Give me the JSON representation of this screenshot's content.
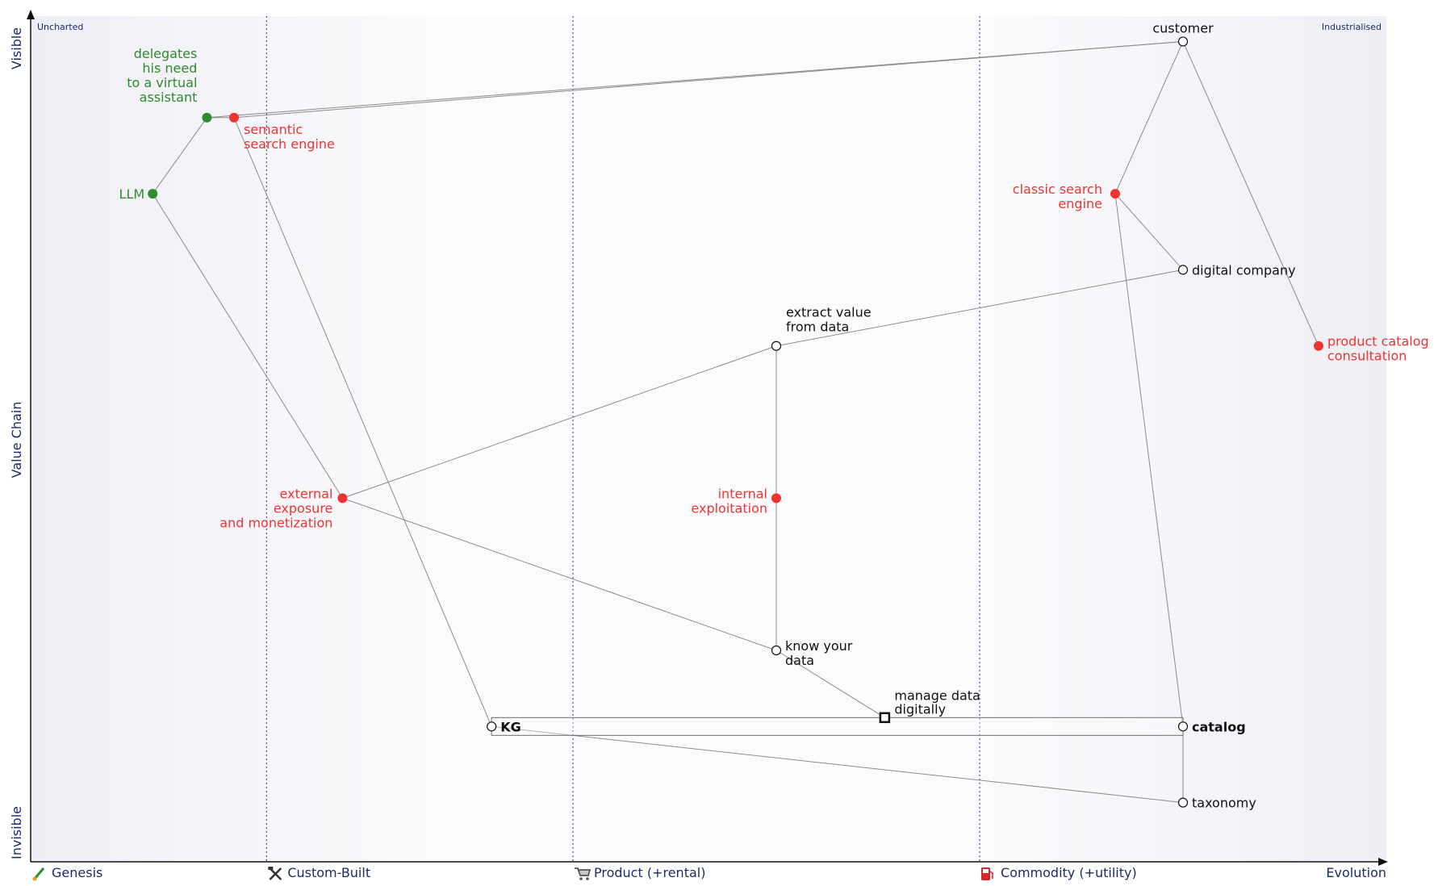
{
  "axes": {
    "y_top": "Visible",
    "y_middle": "Value Chain",
    "y_bottom": "Invisible",
    "x_end": "Evolution",
    "corner_left": "Uncharted",
    "corner_right": "Industrialised"
  },
  "stages": [
    {
      "id": "genesis",
      "label": "Genesis",
      "icon": "brush-icon",
      "x": 0
    },
    {
      "id": "custom",
      "label": "Custom-Built",
      "icon": "tools-icon",
      "x": 0.174
    },
    {
      "id": "product",
      "label": "Product (+rental)",
      "icon": "cart-icon",
      "x": 0.4
    },
    {
      "id": "commodity",
      "label": "Commodity (+utility)",
      "icon": "fuel-icon",
      "x": 0.7
    }
  ],
  "components": [
    {
      "id": "customer",
      "label": [
        "customer"
      ],
      "type": "open",
      "color": "black",
      "evolution": 0.85,
      "visibility": 0.97
    },
    {
      "id": "delegates",
      "label": [
        "delegates",
        "his need",
        "to a virtual",
        "assistant"
      ],
      "type": "filled",
      "color": "green",
      "evolution": 0.13,
      "visibility": 0.88
    },
    {
      "id": "semantic",
      "label": [
        "semantic",
        "search engine"
      ],
      "type": "filled",
      "color": "red",
      "evolution": 0.15,
      "visibility": 0.88
    },
    {
      "id": "llm",
      "label": [
        "LLM"
      ],
      "type": "filled",
      "color": "green",
      "evolution": 0.09,
      "visibility": 0.79
    },
    {
      "id": "classic",
      "label": [
        "classic search",
        "engine"
      ],
      "type": "filled",
      "color": "red",
      "evolution": 0.8,
      "visibility": 0.79
    },
    {
      "id": "digital",
      "label": [
        "digital company"
      ],
      "type": "open",
      "color": "black",
      "evolution": 0.85,
      "visibility": 0.7
    },
    {
      "id": "extract",
      "label": [
        "extract value",
        "from data"
      ],
      "type": "open",
      "color": "black",
      "evolution": 0.55,
      "visibility": 0.61
    },
    {
      "id": "catalog_consult",
      "label": [
        "product catalog",
        "consultation"
      ],
      "type": "filled",
      "color": "red",
      "evolution": 0.95,
      "visibility": 0.61
    },
    {
      "id": "external",
      "label": [
        "external",
        "exposure",
        "and monetization"
      ],
      "type": "filled",
      "color": "red",
      "evolution": 0.23,
      "visibility": 0.43
    },
    {
      "id": "internal",
      "label": [
        "internal",
        "exploitation"
      ],
      "type": "filled",
      "color": "red",
      "evolution": 0.55,
      "visibility": 0.43
    },
    {
      "id": "know",
      "label": [
        "know your",
        "data"
      ],
      "type": "open",
      "color": "black",
      "evolution": 0.55,
      "visibility": 0.25
    },
    {
      "id": "kg",
      "label": [
        "KG"
      ],
      "type": "open",
      "color": "black",
      "evolution": 0.34,
      "visibility": 0.16,
      "bold": true
    },
    {
      "id": "catalog",
      "label": [
        "catalog"
      ],
      "type": "open",
      "color": "black",
      "evolution": 0.85,
      "visibility": 0.16,
      "bold": true
    },
    {
      "id": "taxonomy",
      "label": [
        "taxonomy"
      ],
      "type": "open",
      "color": "black",
      "evolution": 0.85,
      "visibility": 0.07
    }
  ],
  "links": [
    [
      "customer",
      "delegates"
    ],
    [
      "customer",
      "semantic"
    ],
    [
      "customer",
      "classic"
    ],
    [
      "customer",
      "catalog_consult"
    ],
    [
      "delegates",
      "llm"
    ],
    [
      "delegates",
      "semantic"
    ],
    [
      "llm",
      "external"
    ],
    [
      "semantic",
      "kg"
    ],
    [
      "classic",
      "digital"
    ],
    [
      "classic",
      "catalog"
    ],
    [
      "digital",
      "extract"
    ],
    [
      "extract",
      "external"
    ],
    [
      "extract",
      "internal"
    ],
    [
      "internal",
      "know"
    ],
    [
      "external",
      "know"
    ],
    [
      "know",
      "manage_data"
    ],
    [
      "kg",
      "taxonomy"
    ],
    [
      "catalog",
      "taxonomy"
    ]
  ],
  "pipeline": {
    "from": "kg",
    "to": "catalog",
    "marker": {
      "id": "manage_data",
      "label": [
        "manage data",
        "digitally"
      ],
      "evolution": 0.63
    }
  }
}
